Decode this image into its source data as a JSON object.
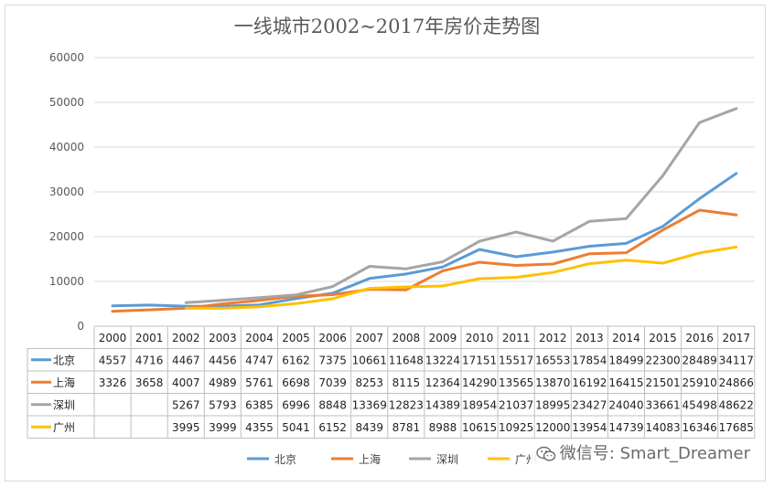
{
  "chart_data": {
    "type": "line",
    "title": "一线城市2002~2017年房价走势图",
    "categories": [
      "2000",
      "2001",
      "2002",
      "2003",
      "2004",
      "2005",
      "2006",
      "2007",
      "2008",
      "2009",
      "2010",
      "2011",
      "2012",
      "2013",
      "2014",
      "2015",
      "2016",
      "2017"
    ],
    "ylim": [
      0,
      60000
    ],
    "yticks": [
      0,
      10000,
      20000,
      30000,
      40000,
      50000,
      60000
    ],
    "grid": true,
    "legend_position": "bottom",
    "series": [
      {
        "name": "北京",
        "color": "#5b9bd5",
        "values": [
          4557,
          4716,
          4467,
          4456,
          4747,
          6162,
          7375,
          10661,
          11648,
          13224,
          17151,
          15517,
          16553,
          17854,
          18499,
          22300,
          28489,
          34117
        ]
      },
      {
        "name": "上海",
        "color": "#ed7d31",
        "values": [
          3326,
          3658,
          4007,
          4989,
          5761,
          6698,
          7039,
          8253,
          8115,
          12364,
          14290,
          13565,
          13870,
          16192,
          16415,
          21501,
          25910,
          24866
        ]
      },
      {
        "name": "深圳",
        "color": "#a5a5a5",
        "values": [
          null,
          null,
          5267,
          5793,
          6385,
          6996,
          8848,
          13369,
          12823,
          14389,
          18954,
          21037,
          18995,
          23427,
          24040,
          33661,
          45498,
          48622
        ]
      },
      {
        "name": "广州",
        "color": "#ffc000",
        "values": [
          null,
          null,
          3995,
          3999,
          4355,
          5041,
          6152,
          8439,
          8781,
          8988,
          10615,
          10925,
          12000,
          13954,
          14739,
          14083,
          16346,
          17685
        ]
      }
    ]
  },
  "watermark": "微信号: Smart_Dreamer"
}
